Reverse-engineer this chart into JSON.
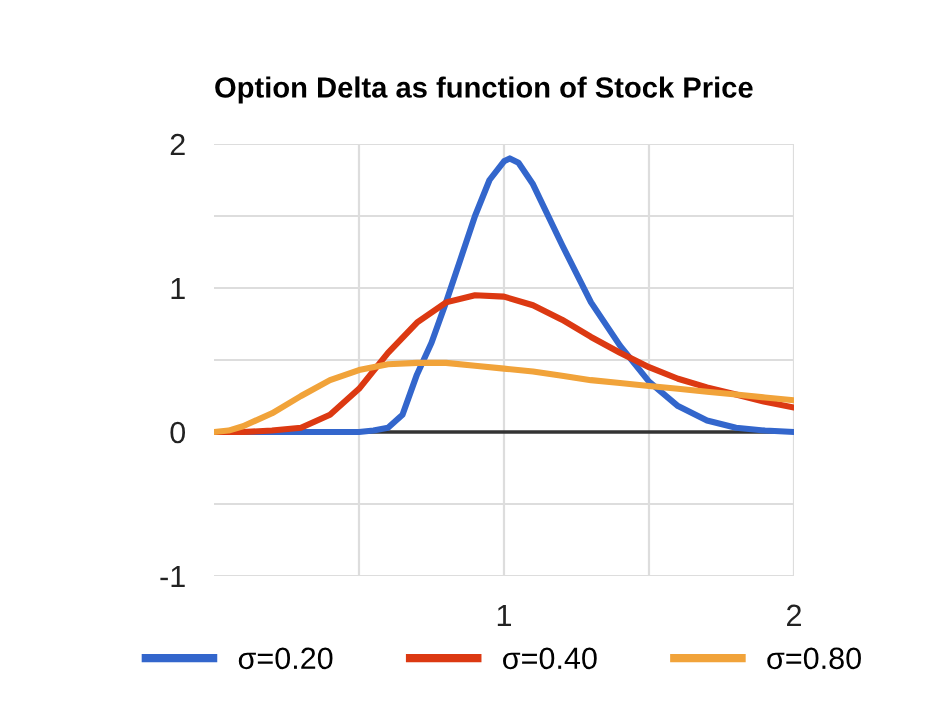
{
  "chart_data": {
    "type": "line",
    "title": "Option Delta as function of Stock Price",
    "xlim": [
      0,
      2
    ],
    "xticks": [
      {
        "value": 0.5,
        "label": null
      },
      1,
      {
        "value": 1.5,
        "label": null
      },
      2
    ],
    "ylim": [
      -1,
      2
    ],
    "yticks": [
      -1,
      {
        "value": -0.5,
        "label": null
      },
      0,
      {
        "value": 0.5,
        "label": null
      },
      1,
      {
        "value": 1.5,
        "label": null
      },
      2
    ],
    "grid": true,
    "legend": "bottom",
    "marker": "none",
    "line_style": "solid",
    "ref_lines": [
      {
        "axis": "y",
        "value": 0,
        "label": null,
        "color": "#333333"
      }
    ],
    "series": [
      {
        "name": "σ=0.20",
        "color": "#3366cc",
        "x": [
          0,
          0.3,
          0.5,
          0.55,
          0.6,
          0.65,
          0.7,
          0.75,
          0.8,
          0.85,
          0.9,
          0.95,
          1.0,
          1.02,
          1.05,
          1.1,
          1.2,
          1.3,
          1.4,
          1.5,
          1.6,
          1.7,
          1.8,
          1.9,
          2.0
        ],
        "values": [
          0,
          0,
          0,
          0.01,
          0.03,
          0.12,
          0.4,
          0.62,
          0.9,
          1.2,
          1.5,
          1.75,
          1.88,
          1.9,
          1.87,
          1.72,
          1.3,
          0.9,
          0.6,
          0.35,
          0.18,
          0.08,
          0.03,
          0.01,
          0
        ]
      },
      {
        "name": "σ=0.40",
        "color": "#dc3912",
        "x": [
          0,
          0.1,
          0.2,
          0.3,
          0.4,
          0.5,
          0.6,
          0.7,
          0.8,
          0.9,
          1.0,
          1.1,
          1.2,
          1.3,
          1.4,
          1.5,
          1.6,
          1.7,
          1.8,
          1.9,
          2.0
        ],
        "values": [
          0,
          0,
          0.01,
          0.03,
          0.12,
          0.3,
          0.55,
          0.76,
          0.9,
          0.95,
          0.94,
          0.88,
          0.78,
          0.66,
          0.55,
          0.45,
          0.37,
          0.31,
          0.26,
          0.21,
          0.17
        ]
      },
      {
        "name": "σ=0.80",
        "color": "#f1a33a",
        "x": [
          0,
          0.05,
          0.1,
          0.2,
          0.3,
          0.4,
          0.5,
          0.6,
          0.7,
          0.8,
          0.9,
          1.0,
          1.1,
          1.2,
          1.3,
          1.4,
          1.5,
          1.6,
          1.7,
          1.8,
          1.9,
          2.0
        ],
        "values": [
          0,
          0.01,
          0.04,
          0.13,
          0.25,
          0.36,
          0.43,
          0.47,
          0.48,
          0.48,
          0.46,
          0.44,
          0.42,
          0.39,
          0.36,
          0.34,
          0.32,
          0.3,
          0.28,
          0.26,
          0.24,
          0.22
        ]
      }
    ]
  }
}
